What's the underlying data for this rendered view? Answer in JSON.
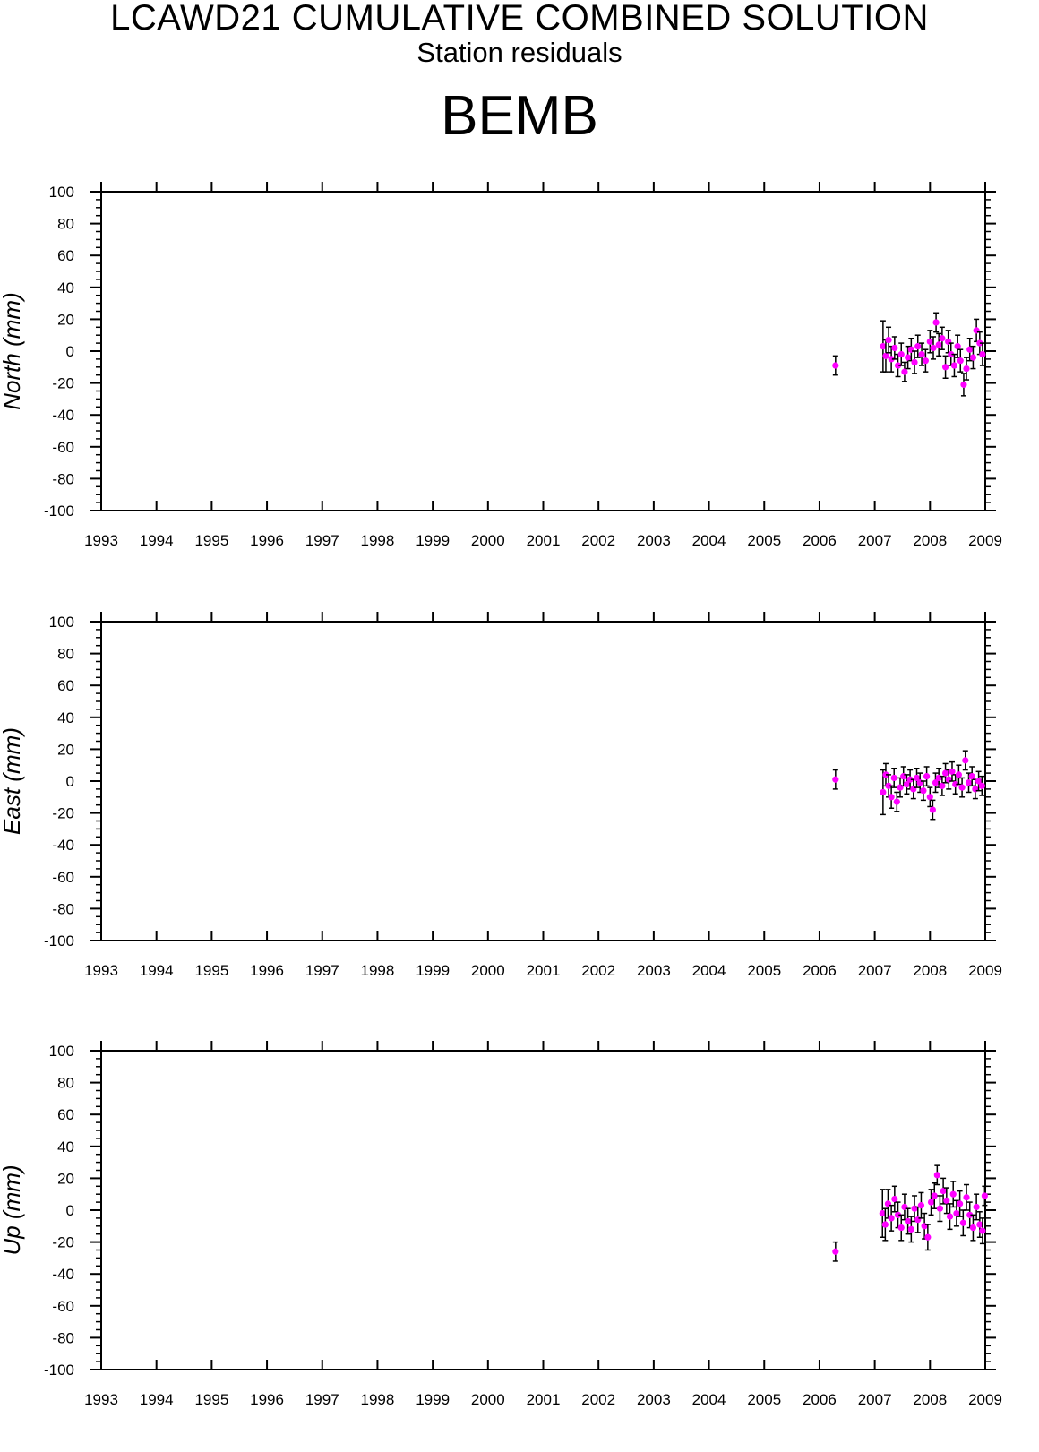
{
  "header": {
    "title": "LCAWD21 CUMULATIVE COMBINED SOLUTION",
    "subtitle": "Station residuals",
    "station": "BEMB"
  },
  "colors": {
    "marker": "#ff00ff",
    "error_bar": "#000000",
    "axis": "#000000"
  },
  "chart_data": [
    {
      "type": "scatter",
      "ylabel": "North (mm)",
      "xlim": [
        1993,
        2009
      ],
      "ylim": [
        -100,
        100
      ],
      "x_ticks": [
        "1993",
        "1994",
        "1995",
        "1996",
        "1997",
        "1998",
        "1999",
        "2000",
        "2001",
        "2002",
        "2003",
        "2004",
        "2005",
        "2006",
        "2007",
        "2008",
        "2009"
      ],
      "y_ticks": [
        "100",
        "80",
        "60",
        "40",
        "20",
        "0",
        "-20",
        "-40",
        "-60",
        "-80",
        "-100"
      ],
      "error_bars": true,
      "points": [
        {
          "x": 2006.29,
          "y": -9,
          "err": 6
        },
        {
          "x": 2007.15,
          "y": 3,
          "err": 16
        },
        {
          "x": 2007.2,
          "y": -3,
          "err": 10
        },
        {
          "x": 2007.25,
          "y": 7,
          "err": 8
        },
        {
          "x": 2007.3,
          "y": -5,
          "err": 8
        },
        {
          "x": 2007.36,
          "y": 2,
          "err": 7
        },
        {
          "x": 2007.42,
          "y": -9,
          "err": 7
        },
        {
          "x": 2007.48,
          "y": -2,
          "err": 7
        },
        {
          "x": 2007.54,
          "y": -13,
          "err": 6
        },
        {
          "x": 2007.6,
          "y": -4,
          "err": 7
        },
        {
          "x": 2007.66,
          "y": 1,
          "err": 7
        },
        {
          "x": 2007.72,
          "y": -7,
          "err": 7
        },
        {
          "x": 2007.78,
          "y": 3,
          "err": 7
        },
        {
          "x": 2007.85,
          "y": -2,
          "err": 7
        },
        {
          "x": 2007.92,
          "y": -6,
          "err": 7
        },
        {
          "x": 2008.0,
          "y": 6,
          "err": 7
        },
        {
          "x": 2008.06,
          "y": 2,
          "err": 7
        },
        {
          "x": 2008.11,
          "y": 18,
          "err": 6
        },
        {
          "x": 2008.16,
          "y": 4,
          "err": 7
        },
        {
          "x": 2008.22,
          "y": 8,
          "err": 7
        },
        {
          "x": 2008.28,
          "y": -10,
          "err": 7
        },
        {
          "x": 2008.33,
          "y": 6,
          "err": 7
        },
        {
          "x": 2008.38,
          "y": -2,
          "err": 7
        },
        {
          "x": 2008.44,
          "y": -9,
          "err": 7
        },
        {
          "x": 2008.5,
          "y": 3,
          "err": 7
        },
        {
          "x": 2008.55,
          "y": -6,
          "err": 7
        },
        {
          "x": 2008.61,
          "y": -21,
          "err": 7
        },
        {
          "x": 2008.66,
          "y": -11,
          "err": 7
        },
        {
          "x": 2008.72,
          "y": 1,
          "err": 7
        },
        {
          "x": 2008.78,
          "y": -4,
          "err": 7
        },
        {
          "x": 2008.84,
          "y": 13,
          "err": 7
        },
        {
          "x": 2008.9,
          "y": 5,
          "err": 7
        },
        {
          "x": 2008.95,
          "y": -2,
          "err": 7
        }
      ]
    },
    {
      "type": "scatter",
      "ylabel": "East (mm)",
      "xlim": [
        1993,
        2009
      ],
      "ylim": [
        -100,
        100
      ],
      "x_ticks": [
        "1993",
        "1994",
        "1995",
        "1996",
        "1997",
        "1998",
        "1999",
        "2000",
        "2001",
        "2002",
        "2003",
        "2004",
        "2005",
        "2006",
        "2007",
        "2008",
        "2009"
      ],
      "y_ticks": [
        "100",
        "80",
        "60",
        "40",
        "20",
        "0",
        "-20",
        "-40",
        "-60",
        "-80",
        "-100"
      ],
      "error_bars": true,
      "points": [
        {
          "x": 2006.29,
          "y": 1,
          "err": 6
        },
        {
          "x": 2007.15,
          "y": -7,
          "err": 14
        },
        {
          "x": 2007.2,
          "y": 4,
          "err": 7
        },
        {
          "x": 2007.25,
          "y": -3,
          "err": 7
        },
        {
          "x": 2007.3,
          "y": -10,
          "err": 7
        },
        {
          "x": 2007.35,
          "y": 2,
          "err": 6
        },
        {
          "x": 2007.4,
          "y": -13,
          "err": 6
        },
        {
          "x": 2007.46,
          "y": -4,
          "err": 6
        },
        {
          "x": 2007.52,
          "y": 3,
          "err": 6
        },
        {
          "x": 2007.58,
          "y": -2,
          "err": 6
        },
        {
          "x": 2007.64,
          "y": 1,
          "err": 6
        },
        {
          "x": 2007.7,
          "y": -5,
          "err": 6
        },
        {
          "x": 2007.76,
          "y": 2,
          "err": 6
        },
        {
          "x": 2007.82,
          "y": -1,
          "err": 6
        },
        {
          "x": 2007.88,
          "y": -6,
          "err": 6
        },
        {
          "x": 2007.94,
          "y": 3,
          "err": 6
        },
        {
          "x": 2008.0,
          "y": -10,
          "err": 6
        },
        {
          "x": 2008.05,
          "y": -18,
          "err": 6
        },
        {
          "x": 2008.1,
          "y": -1,
          "err": 6
        },
        {
          "x": 2008.16,
          "y": 2,
          "err": 6
        },
        {
          "x": 2008.22,
          "y": -3,
          "err": 6
        },
        {
          "x": 2008.28,
          "y": 5,
          "err": 6
        },
        {
          "x": 2008.34,
          "y": 1,
          "err": 6
        },
        {
          "x": 2008.4,
          "y": 6,
          "err": 6
        },
        {
          "x": 2008.46,
          "y": -2,
          "err": 6
        },
        {
          "x": 2008.52,
          "y": 4,
          "err": 6
        },
        {
          "x": 2008.58,
          "y": -4,
          "err": 6
        },
        {
          "x": 2008.64,
          "y": 13,
          "err": 6
        },
        {
          "x": 2008.7,
          "y": -1,
          "err": 6
        },
        {
          "x": 2008.76,
          "y": 3,
          "err": 6
        },
        {
          "x": 2008.82,
          "y": -5,
          "err": 6
        },
        {
          "x": 2008.88,
          "y": 0,
          "err": 6
        },
        {
          "x": 2008.94,
          "y": -3,
          "err": 6
        }
      ]
    },
    {
      "type": "scatter",
      "ylabel": "Up (mm)",
      "xlim": [
        1993,
        2009
      ],
      "ylim": [
        -100,
        100
      ],
      "x_ticks": [
        "1993",
        "1994",
        "1995",
        "1996",
        "1997",
        "1998",
        "1999",
        "2000",
        "2001",
        "2002",
        "2003",
        "2004",
        "2005",
        "2006",
        "2007",
        "2008",
        "2009"
      ],
      "y_ticks": [
        "100",
        "80",
        "60",
        "40",
        "20",
        "0",
        "-20",
        "-40",
        "-60",
        "-80",
        "-100"
      ],
      "error_bars": true,
      "points": [
        {
          "x": 2006.29,
          "y": -26,
          "err": 6
        },
        {
          "x": 2007.14,
          "y": -2,
          "err": 15
        },
        {
          "x": 2007.19,
          "y": -9,
          "err": 10
        },
        {
          "x": 2007.24,
          "y": 4,
          "err": 9
        },
        {
          "x": 2007.3,
          "y": -5,
          "err": 8
        },
        {
          "x": 2007.36,
          "y": 7,
          "err": 8
        },
        {
          "x": 2007.42,
          "y": -3,
          "err": 8
        },
        {
          "x": 2007.48,
          "y": -11,
          "err": 8
        },
        {
          "x": 2007.54,
          "y": 2,
          "err": 8
        },
        {
          "x": 2007.6,
          "y": -7,
          "err": 8
        },
        {
          "x": 2007.66,
          "y": -12,
          "err": 8
        },
        {
          "x": 2007.72,
          "y": 1,
          "err": 8
        },
        {
          "x": 2007.78,
          "y": -6,
          "err": 8
        },
        {
          "x": 2007.84,
          "y": 3,
          "err": 8
        },
        {
          "x": 2007.9,
          "y": -10,
          "err": 8
        },
        {
          "x": 2007.96,
          "y": -17,
          "err": 8
        },
        {
          "x": 2008.02,
          "y": 5,
          "err": 8
        },
        {
          "x": 2008.08,
          "y": 9,
          "err": 8
        },
        {
          "x": 2008.13,
          "y": 22,
          "err": 6
        },
        {
          "x": 2008.18,
          "y": 1,
          "err": 8
        },
        {
          "x": 2008.24,
          "y": 12,
          "err": 8
        },
        {
          "x": 2008.3,
          "y": 6,
          "err": 8
        },
        {
          "x": 2008.36,
          "y": -4,
          "err": 8
        },
        {
          "x": 2008.42,
          "y": 10,
          "err": 8
        },
        {
          "x": 2008.48,
          "y": -2,
          "err": 8
        },
        {
          "x": 2008.54,
          "y": 4,
          "err": 8
        },
        {
          "x": 2008.6,
          "y": -8,
          "err": 8
        },
        {
          "x": 2008.66,
          "y": 8,
          "err": 8
        },
        {
          "x": 2008.72,
          "y": -3,
          "err": 8
        },
        {
          "x": 2008.78,
          "y": -11,
          "err": 8
        },
        {
          "x": 2008.84,
          "y": 2,
          "err": 8
        },
        {
          "x": 2008.9,
          "y": -9,
          "err": 8
        },
        {
          "x": 2008.95,
          "y": -13,
          "err": 8
        },
        {
          "x": 2008.99,
          "y": 9,
          "err": 6
        }
      ]
    }
  ]
}
